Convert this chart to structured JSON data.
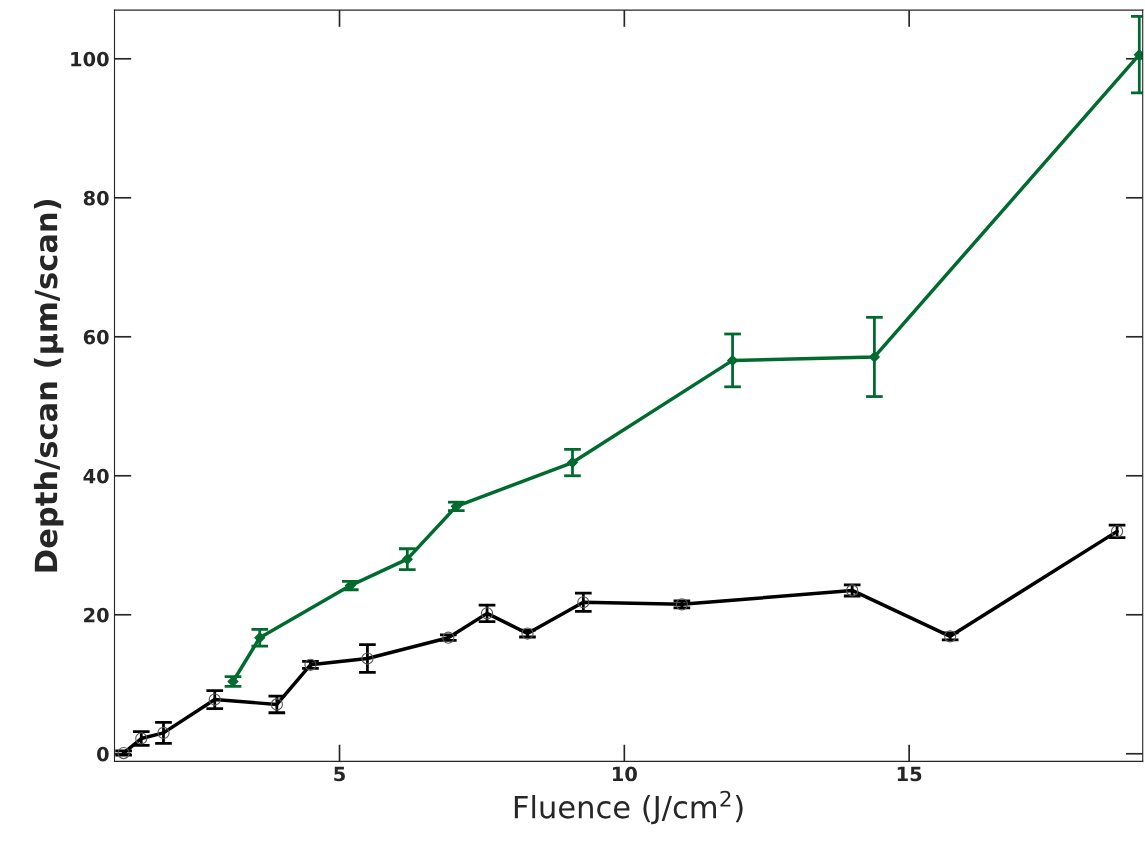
{
  "chart_data": {
    "type": "line",
    "xlabel": "Fluence (J/cm$^{2}$)",
    "ylabel": "Depth/scan (μm/scan)",
    "xlim": [
      1.05,
      19.1
    ],
    "ylim": [
      -1.1,
      107
    ],
    "xticks": [
      5,
      10,
      15
    ],
    "yticks": [
      0,
      20,
      40,
      60,
      80,
      100
    ],
    "grid": false,
    "legend": false,
    "line_style": "solid",
    "series": [
      {
        "color": "#000000",
        "marker": "circle",
        "x": [
          1.21,
          1.52,
          1.91,
          2.81,
          3.9,
          4.49,
          5.49,
          6.91,
          7.59,
          8.3,
          9.28,
          11.01,
          14.0,
          15.72,
          18.65
        ],
        "values": [
          0.1,
          2.2,
          3.0,
          7.8,
          7.1,
          12.8,
          13.7,
          16.7,
          20.2,
          17.3,
          21.8,
          21.5,
          23.5,
          16.9,
          32.0
        ],
        "errors": [
          0.3,
          1.0,
          1.5,
          1.3,
          1.2,
          0.5,
          2.0,
          0.4,
          1.2,
          0.5,
          1.3,
          0.5,
          0.8,
          0.5,
          0.9
        ]
      },
      {
        "color": "#006b2e",
        "marker": "diamond",
        "x": [
          3.13,
          3.6,
          5.19,
          6.19,
          7.05,
          9.09,
          11.9,
          14.39,
          19.04
        ],
        "values": [
          10.4,
          16.7,
          24.2,
          28.0,
          35.6,
          41.9,
          56.6,
          57.1,
          100.6
        ],
        "errors": [
          0.7,
          1.2,
          0.6,
          1.5,
          0.6,
          1.9,
          3.8,
          5.7,
          5.5
        ]
      }
    ]
  }
}
